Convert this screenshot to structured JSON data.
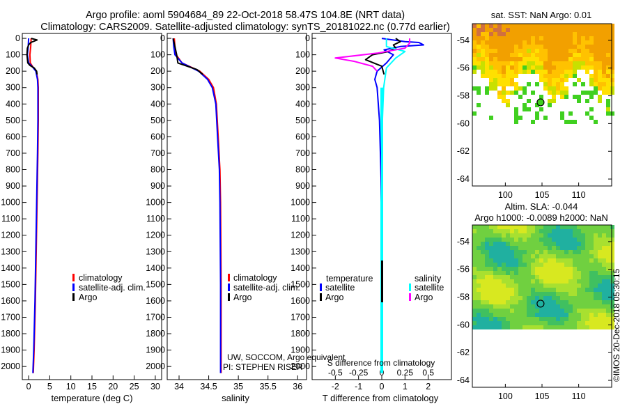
{
  "header": {
    "line1": "Argo profile: aoml 5904684_89 22-Oct-2018 58.47S 104.8E (NRT data)",
    "line2": "Climatology: CARS2009. Satellite-adjusted climatology: synTS_20181022.nc (0.77d earlier)"
  },
  "colors": {
    "climatology": "#ff0000",
    "satellite": "#0000ff",
    "argo": "#000000",
    "argo_salinity_diff": "#ff00ff",
    "satellite_salinity_diff": "#00ffff"
  },
  "chart_data": [
    {
      "type": "line",
      "id": "temperature_profile",
      "xlabel": "temperature (deg C)",
      "xlim": [
        -1.5,
        31.5
      ],
      "xticks": [
        0,
        5,
        10,
        15,
        20,
        25,
        30
      ],
      "ylim": [
        2080,
        -30
      ],
      "yticks": [
        0,
        100,
        200,
        300,
        400,
        500,
        600,
        700,
        800,
        900,
        1000,
        1100,
        1200,
        1300,
        1400,
        1500,
        1600,
        1700,
        1800,
        1900,
        2000
      ],
      "legend": [
        "climatology",
        "satellite-adj. clim.",
        "Argo"
      ],
      "series": [
        {
          "name": "climatology",
          "color": "#ff0000",
          "points": [
            [
              0.6,
              0
            ],
            [
              0.5,
              50
            ],
            [
              0.3,
              100
            ],
            [
              0.4,
              150
            ],
            [
              0.9,
              170
            ],
            [
              1.8,
              200
            ],
            [
              2.2,
              250
            ],
            [
              2.3,
              300
            ],
            [
              2.3,
              500
            ],
            [
              2.2,
              700
            ],
            [
              2.0,
              1000
            ],
            [
              1.8,
              1300
            ],
            [
              1.6,
              1600
            ],
            [
              1.3,
              1900
            ],
            [
              1.1,
              2040
            ]
          ]
        },
        {
          "name": "satellite-adj. clim.",
          "color": "#0000ff",
          "points": [
            [
              0.0,
              0
            ],
            [
              -0.1,
              50
            ],
            [
              -0.3,
              100
            ],
            [
              0.0,
              150
            ],
            [
              0.8,
              170
            ],
            [
              1.7,
              200
            ],
            [
              2.1,
              250
            ],
            [
              2.2,
              300
            ],
            [
              2.2,
              500
            ],
            [
              2.1,
              700
            ],
            [
              1.9,
              1000
            ],
            [
              1.7,
              1300
            ],
            [
              1.5,
              1600
            ],
            [
              1.2,
              1900
            ],
            [
              1.0,
              2040
            ]
          ]
        },
        {
          "name": "Argo",
          "color": "#000000",
          "points": [
            [
              0.6,
              0
            ],
            [
              2.0,
              10
            ],
            [
              0.5,
              25
            ],
            [
              0.0,
              40
            ],
            [
              -0.3,
              60
            ],
            [
              -0.4,
              100
            ],
            [
              -0.2,
              150
            ],
            [
              0.3,
              165
            ],
            [
              1.3,
              180
            ],
            [
              1.9,
              200
            ],
            [
              2.0,
              220
            ]
          ]
        }
      ]
    },
    {
      "type": "line",
      "id": "salinity_profile",
      "xlabel": "salinity",
      "xlim": [
        33.8,
        36.15
      ],
      "xticks": [
        34,
        34.5,
        35,
        35.5,
        36
      ],
      "xtick_labels": [
        "34",
        "34.5",
        "35",
        "35.5",
        "36"
      ],
      "ylim": [
        2080,
        -30
      ],
      "legend": [
        "climatology",
        "satellite-adj. clim.",
        "Argo"
      ],
      "annotation": [
        "UW, SOCCOM, Argo equivalent",
        "PI: STEPHEN RISER"
      ],
      "series": [
        {
          "name": "climatology",
          "color": "#ff0000",
          "points": [
            [
              33.92,
              0
            ],
            [
              33.93,
              50
            ],
            [
              33.95,
              100
            ],
            [
              34.05,
              150
            ],
            [
              34.35,
              200
            ],
            [
              34.5,
              250
            ],
            [
              34.58,
              300
            ],
            [
              34.63,
              400
            ],
            [
              34.66,
              600
            ],
            [
              34.69,
              800
            ],
            [
              34.7,
              1000
            ],
            [
              34.71,
              1500
            ],
            [
              34.71,
              2040
            ]
          ]
        },
        {
          "name": "satellite-adj. clim.",
          "color": "#0000ff",
          "points": [
            [
              33.9,
              0
            ],
            [
              33.91,
              50
            ],
            [
              33.93,
              100
            ],
            [
              34.05,
              150
            ],
            [
              34.33,
              200
            ],
            [
              34.48,
              250
            ],
            [
              34.56,
              300
            ],
            [
              34.62,
              400
            ],
            [
              34.65,
              600
            ],
            [
              34.68,
              800
            ],
            [
              34.69,
              1000
            ],
            [
              34.7,
              1500
            ],
            [
              34.7,
              2040
            ]
          ]
        },
        {
          "name": "Argo",
          "color": "#000000",
          "points": [
            [
              33.9,
              0
            ],
            [
              33.93,
              50
            ],
            [
              33.96,
              100
            ],
            [
              33.98,
              150
            ],
            [
              34.3,
              190
            ],
            [
              34.4,
              220
            ]
          ]
        }
      ]
    },
    {
      "type": "line",
      "id": "difference_profile",
      "xlabel": "T difference from climatology",
      "xlabel_top": "S difference from climatology",
      "xlim": [
        -3.0,
        3.0
      ],
      "xticks": [
        -2,
        -1,
        0,
        1,
        2
      ],
      "s_xticks": [
        -0.5,
        -0.25,
        0,
        0.25,
        0.5
      ],
      "s_xtick_labels": [
        "-0.5",
        "-0.25",
        "0",
        "0.25",
        "0.5"
      ],
      "ylim": [
        2080,
        -30
      ],
      "legend_left_title": "temperature",
      "legend_right_title": "salinity",
      "legend_left": [
        "satellite",
        "Argo"
      ],
      "legend_right": [
        "satellite",
        "Argo"
      ],
      "series": [
        {
          "name": "T satellite",
          "color": "#0000ff",
          "points": [
            [
              0.0,
              0
            ],
            [
              1.0,
              20
            ],
            [
              1.6,
              25
            ],
            [
              1.8,
              40
            ],
            [
              0.8,
              50
            ],
            [
              0.1,
              70
            ],
            [
              0.5,
              100
            ],
            [
              0.2,
              150
            ],
            [
              -0.2,
              200
            ],
            [
              -0.3,
              250
            ],
            [
              -0.2,
              300
            ],
            [
              -0.1,
              500
            ],
            [
              0.0,
              1000
            ],
            [
              0.0,
              2040
            ]
          ]
        },
        {
          "name": "T Argo",
          "color": "#000000",
          "points": [
            [
              0.6,
              0
            ],
            [
              0.8,
              20
            ],
            [
              0.5,
              40
            ],
            [
              0.6,
              60
            ],
            [
              0.3,
              80
            ],
            [
              -0.4,
              100
            ],
            [
              -0.7,
              130
            ],
            [
              0.0,
              170
            ],
            [
              0.1,
              220
            ]
          ]
        },
        {
          "name": "S satellite",
          "color": "#00ffff",
          "points": [
            [
              0.05,
              0
            ],
            [
              0.05,
              50
            ],
            [
              0.25,
              80
            ],
            [
              0.15,
              120
            ],
            [
              0.05,
              180
            ],
            [
              0.02,
              300
            ],
            [
              0.0,
              600
            ],
            [
              0.0,
              2040
            ]
          ]
        },
        {
          "name": "S Argo",
          "color": "#ff00ff",
          "points": [
            [
              0.3,
              0
            ],
            [
              0.3,
              30
            ],
            [
              0.25,
              60
            ],
            [
              -0.05,
              90
            ],
            [
              -0.5,
              120
            ],
            [
              -0.3,
              140
            ],
            [
              -0.1,
              170
            ],
            [
              -0.05,
              200
            ]
          ]
        }
      ]
    },
    {
      "type": "heatmap",
      "id": "sst_map",
      "title": "sat. SST: NaN Argo: 0.01",
      "xlim": [
        95.5,
        114.5
      ],
      "ylim": [
        -64.5,
        -52.8
      ],
      "xticks": [
        100,
        105,
        110
      ],
      "yticks": [
        -54,
        -56,
        -58,
        -60,
        -62,
        -64
      ],
      "marker": {
        "lon": 104.8,
        "lat": -58.47
      }
    },
    {
      "type": "heatmap",
      "id": "sla_map",
      "title": "Altim. SLA: -0.044",
      "subtitle": "Argo h1000: -0.0089 h2000: NaN",
      "xlim": [
        95.5,
        114.5
      ],
      "ylim": [
        -64.5,
        -52.8
      ],
      "xticks": [
        100,
        105,
        110
      ],
      "yticks": [
        -54,
        -56,
        -58,
        -60,
        -62,
        -64
      ],
      "marker": {
        "lon": 104.8,
        "lat": -58.47
      }
    }
  ],
  "footer": {
    "watermark": "©IMOS 20-Dec-2018 05:30:15"
  }
}
